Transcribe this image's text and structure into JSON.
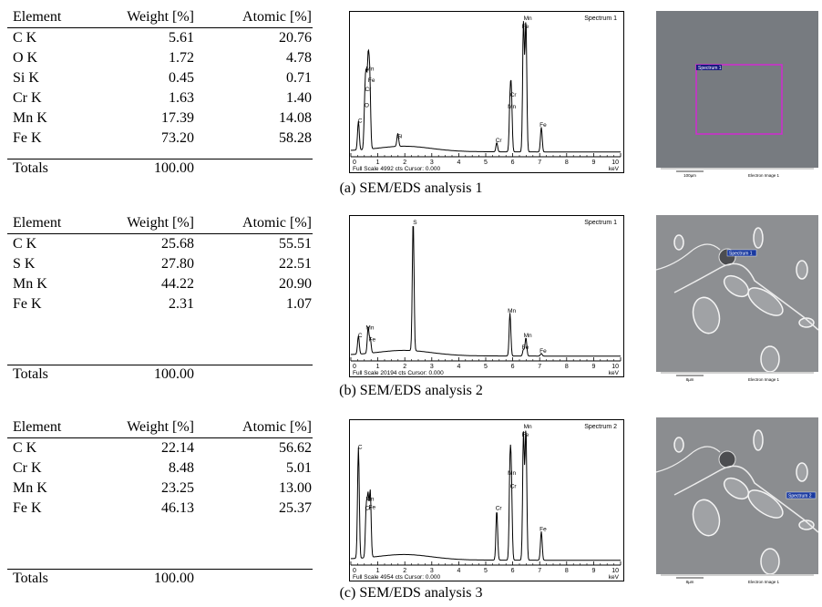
{
  "panels": [
    {
      "caption": "(a) SEM/EDS analysis 1",
      "headers": [
        "Element",
        "Weight [%]",
        "Atomic [%]"
      ],
      "rows": [
        [
          "C K",
          "5.61",
          "20.76"
        ],
        [
          "O K",
          "1.72",
          "4.78"
        ],
        [
          "Si K",
          "0.45",
          "0.71"
        ],
        [
          "Cr K",
          "1.63",
          "1.40"
        ],
        [
          "Mn K",
          "17.39",
          "14.08"
        ],
        [
          "Fe K",
          "73.20",
          "58.28"
        ]
      ],
      "totals": [
        "Totals",
        "100.00"
      ],
      "spectrum": {
        "title": "Spectrum 1",
        "footer_left": "Full Scale 4992 cts Cursor: 0.000",
        "footer_right": "keV",
        "x_ticks": [
          "0",
          "1",
          "2",
          "3",
          "4",
          "5",
          "6",
          "7",
          "8",
          "9",
          "10"
        ],
        "peaks": [
          {
            "label": "C",
            "kev": 0.28,
            "height": 0.22
          },
          {
            "label": "O",
            "kev": 0.52,
            "height": 0.34
          },
          {
            "label": "Cr",
            "kev": 0.57,
            "height": 0.46
          },
          {
            "label": "Fe",
            "kev": 0.7,
            "height": 0.53
          },
          {
            "label": "Mn",
            "kev": 0.64,
            "height": 0.62
          },
          {
            "label": "Si",
            "kev": 1.74,
            "height": 0.1
          },
          {
            "label": "Cr",
            "kev": 5.41,
            "height": 0.07
          },
          {
            "label": "Mn",
            "kev": 5.9,
            "height": 0.33
          },
          {
            "label": "Cr",
            "kev": 5.95,
            "height": 0.42
          },
          {
            "label": "Mn",
            "kev": 6.49,
            "height": 1.0
          },
          {
            "label": "Fe",
            "kev": 6.4,
            "height": 1.0
          },
          {
            "label": "Fe",
            "kev": 7.06,
            "height": 0.19
          }
        ]
      },
      "image": {
        "label": "Spectrum 1",
        "scale": "100µm",
        "caption": "Electron Image 1",
        "tone": "#777b80"
      }
    },
    {
      "caption": "(b) SEM/EDS analysis 2",
      "headers": [
        "Element",
        "Weight [%]",
        "Atomic [%]"
      ],
      "rows": [
        [
          "C K",
          "25.68",
          "55.51"
        ],
        [
          "S K",
          "27.80",
          "22.51"
        ],
        [
          "Mn K",
          "44.22",
          "20.90"
        ],
        [
          "Fe K",
          "2.31",
          "1.07"
        ]
      ],
      "totals": [
        "Totals",
        "100.00"
      ],
      "spectrum": {
        "title": "Spectrum 1",
        "footer_left": "Full Scale 20194 cts Cursor: 0.000",
        "footer_right": "keV",
        "x_ticks": [
          "0",
          "1",
          "2",
          "3",
          "4",
          "5",
          "6",
          "7",
          "8",
          "9",
          "10"
        ],
        "peaks": [
          {
            "label": "C",
            "kev": 0.28,
            "height": 0.14
          },
          {
            "label": "Mn",
            "kev": 0.64,
            "height": 0.2
          },
          {
            "label": "Fe",
            "kev": 0.72,
            "height": 0.11
          },
          {
            "label": "S",
            "kev": 2.31,
            "height": 1.0
          },
          {
            "label": "Mn",
            "kev": 5.9,
            "height": 0.33
          },
          {
            "label": "Mn",
            "kev": 6.49,
            "height": 0.14
          },
          {
            "label": "Fe",
            "kev": 6.4,
            "height": 0.05
          },
          {
            "label": "Fe",
            "kev": 7.06,
            "height": 0.02
          }
        ]
      },
      "image": {
        "label": "Spectrum 1",
        "scale": "8µm",
        "caption": "Electron Image 1",
        "tone": "#8d8f92"
      }
    },
    {
      "caption": "(c) SEM/EDS analysis 3",
      "headers": [
        "Element",
        "Weight [%]",
        "Atomic [%]"
      ],
      "rows": [
        [
          "C K",
          "22.14",
          "56.62"
        ],
        [
          "Cr K",
          "8.48",
          "5.01"
        ],
        [
          "Mn K",
          "23.25",
          "13.00"
        ],
        [
          "Fe K",
          "46.13",
          "25.37"
        ]
      ],
      "totals": [
        "Totals",
        "100.00"
      ],
      "spectrum": {
        "title": "Spectrum 2",
        "footer_left": "Full Scale 4954 cts Cursor: 0.000",
        "footer_right": "keV",
        "x_ticks": [
          "0",
          "1",
          "2",
          "3",
          "4",
          "5",
          "6",
          "7",
          "8",
          "9",
          "10"
        ],
        "peaks": [
          {
            "label": "C",
            "kev": 0.28,
            "height": 0.85
          },
          {
            "label": "Cr",
            "kev": 0.57,
            "height": 0.38
          },
          {
            "label": "Mn",
            "kev": 0.64,
            "height": 0.45
          },
          {
            "label": "Fe",
            "kev": 0.72,
            "height": 0.5
          },
          {
            "label": "Cr",
            "kev": 5.41,
            "height": 0.38
          },
          {
            "label": "Mn",
            "kev": 5.9,
            "height": 0.65
          },
          {
            "label": "Cr",
            "kev": 5.95,
            "height": 0.55
          },
          {
            "label": "Mn",
            "kev": 6.49,
            "height": 1.0
          },
          {
            "label": "Fe",
            "kev": 6.4,
            "height": 0.97
          },
          {
            "label": "Fe",
            "kev": 7.06,
            "height": 0.22
          }
        ]
      },
      "image": {
        "label": "Spectrum 2",
        "scale": "8µm",
        "caption": "Electron Image 1",
        "tone": "#8b8d90"
      }
    }
  ]
}
